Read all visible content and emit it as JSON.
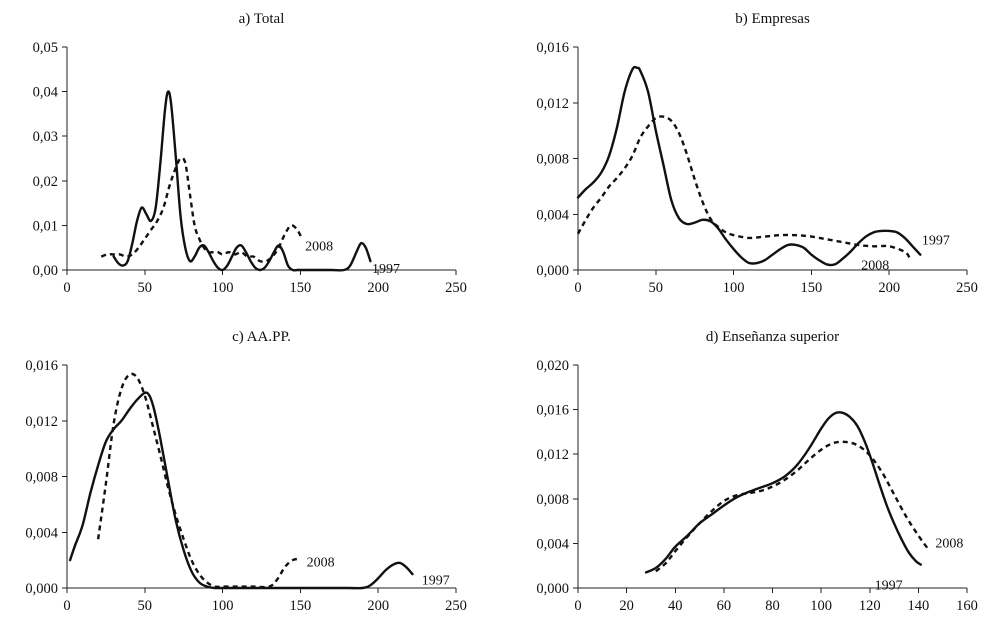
{
  "chart_data": [
    {
      "type": "line",
      "title": "a) Total",
      "xlim": [
        0,
        250
      ],
      "ylim": [
        0,
        0.05
      ],
      "xticks": [
        "0",
        "50",
        "100",
        "150",
        "200",
        "250"
      ],
      "yticks": [
        "0,00",
        "0,01",
        "0,02",
        "0,03",
        "0,04",
        "0,05"
      ],
      "series": [
        {
          "name": "1997",
          "x": [
            30,
            33,
            36,
            39,
            42,
            45,
            48,
            51,
            54,
            57,
            60,
            63,
            65,
            67,
            70,
            73,
            76,
            79,
            82,
            85,
            88,
            91,
            94,
            97,
            100,
            103,
            106,
            109,
            112,
            115,
            118,
            121,
            124,
            127,
            130,
            133,
            136,
            139,
            142,
            145,
            148,
            150,
            160,
            170,
            178,
            182,
            186,
            189,
            192,
            195
          ],
          "y": [
            0.003,
            0.0015,
            0.001,
            0.002,
            0.006,
            0.011,
            0.014,
            0.0125,
            0.011,
            0.014,
            0.024,
            0.036,
            0.04,
            0.037,
            0.025,
            0.012,
            0.005,
            0.002,
            0.003,
            0.005,
            0.0055,
            0.004,
            0.002,
            0.0005,
            0,
            0.001,
            0.003,
            0.005,
            0.0055,
            0.004,
            0.002,
            0.0005,
            0,
            0.0005,
            0.002,
            0.004,
            0.0055,
            0.004,
            0.001,
            0,
            0,
            0,
            0,
            0,
            0,
            0.001,
            0.004,
            0.006,
            0.005,
            0.002
          ]
        },
        {
          "name": "2008",
          "x": [
            22,
            26,
            30,
            34,
            38,
            42,
            46,
            50,
            54,
            58,
            62,
            66,
            70,
            73,
            76,
            79,
            82,
            85,
            88,
            91,
            94,
            97,
            100,
            104,
            108,
            112,
            116,
            120,
            124,
            128,
            132,
            136,
            140,
            144,
            148,
            151
          ],
          "y": [
            0.003,
            0.0035,
            0.0035,
            0.0035,
            0.003,
            0.0035,
            0.005,
            0.007,
            0.009,
            0.011,
            0.014,
            0.019,
            0.023,
            0.025,
            0.024,
            0.017,
            0.01,
            0.007,
            0.005,
            0.004,
            0.004,
            0.004,
            0.0035,
            0.004,
            0.0035,
            0.004,
            0.003,
            0.003,
            0.002,
            0.002,
            0.003,
            0.005,
            0.008,
            0.01,
            0.009,
            0.007
          ]
        }
      ],
      "annotations": [
        {
          "text": "2008",
          "x": 153,
          "y": 0.0055
        },
        {
          "text": "1997",
          "x": 196,
          "y": 0.0005
        }
      ]
    },
    {
      "type": "line",
      "title": "b) Empresas",
      "xlim": [
        0,
        250
      ],
      "ylim": [
        0,
        0.016
      ],
      "xticks": [
        "0",
        "50",
        "100",
        "150",
        "200",
        "250"
      ],
      "yticks": [
        "0,000",
        "0,004",
        "0,008",
        "0,012",
        "0,016"
      ],
      "series": [
        {
          "name": "1997",
          "x": [
            0,
            5,
            10,
            15,
            20,
            25,
            30,
            35,
            38,
            40,
            45,
            50,
            55,
            60,
            65,
            70,
            75,
            80,
            85,
            90,
            95,
            100,
            105,
            110,
            115,
            120,
            125,
            130,
            135,
            140,
            145,
            150,
            155,
            160,
            165,
            170,
            175,
            180,
            185,
            190,
            195,
            200,
            205,
            210,
            215,
            220
          ],
          "y": [
            0.0052,
            0.0058,
            0.0063,
            0.007,
            0.0082,
            0.0102,
            0.0128,
            0.0144,
            0.0145,
            0.0143,
            0.0128,
            0.01,
            0.0075,
            0.005,
            0.0037,
            0.0033,
            0.0034,
            0.0036,
            0.0035,
            0.003,
            0.0022,
            0.0015,
            0.0009,
            0.0005,
            0.0005,
            0.0007,
            0.0011,
            0.0015,
            0.0018,
            0.0018,
            0.0016,
            0.0011,
            0.0007,
            0.0004,
            0.0004,
            0.0008,
            0.0013,
            0.0019,
            0.0024,
            0.0027,
            0.0028,
            0.0028,
            0.0027,
            0.0023,
            0.0017,
            0.0011
          ]
        },
        {
          "name": "2008",
          "x": [
            0,
            5,
            10,
            15,
            20,
            25,
            30,
            35,
            40,
            45,
            50,
            55,
            60,
            65,
            70,
            75,
            80,
            85,
            90,
            95,
            100,
            110,
            120,
            130,
            140,
            150,
            160,
            170,
            180,
            190,
            200,
            210,
            213
          ],
          "y": [
            0.0026,
            0.0036,
            0.0045,
            0.0052,
            0.006,
            0.0066,
            0.0073,
            0.0082,
            0.0095,
            0.0103,
            0.0109,
            0.011,
            0.0107,
            0.0098,
            0.0083,
            0.0065,
            0.0049,
            0.0037,
            0.0031,
            0.0027,
            0.0025,
            0.0023,
            0.0024,
            0.0025,
            0.0025,
            0.0024,
            0.0022,
            0.002,
            0.0018,
            0.0017,
            0.0017,
            0.0013,
            0.0009
          ]
        }
      ],
      "annotations": [
        {
          "text": "1997",
          "x": 221,
          "y": 0.0022
        },
        {
          "text": "2008",
          "x": 182,
          "y": 0.0004
        }
      ]
    },
    {
      "type": "line",
      "title": "c) AA.PP.",
      "xlim": [
        0,
        250
      ],
      "ylim": [
        0,
        0.016
      ],
      "xticks": [
        "0",
        "50",
        "100",
        "150",
        "200",
        "250"
      ],
      "yticks": [
        "0,000",
        "0,004",
        "0,008",
        "0,012",
        "0,016"
      ],
      "series": [
        {
          "name": "1997",
          "x": [
            2,
            5,
            10,
            15,
            20,
            25,
            30,
            35,
            40,
            45,
            50,
            53,
            56,
            60,
            65,
            70,
            75,
            80,
            85,
            90,
            95,
            100,
            110,
            120,
            140,
            160,
            180,
            190,
            195,
            200,
            205,
            210,
            214,
            218,
            222
          ],
          "y": [
            0.002,
            0.003,
            0.0045,
            0.0068,
            0.0088,
            0.0105,
            0.0114,
            0.012,
            0.0128,
            0.0135,
            0.014,
            0.0138,
            0.0128,
            0.0107,
            0.0077,
            0.0048,
            0.0027,
            0.0012,
            0.0004,
            0.0001,
            0,
            0,
            0,
            0,
            0,
            0,
            0,
            0,
            0.0002,
            0.0007,
            0.0013,
            0.0017,
            0.0018,
            0.0015,
            0.001
          ]
        },
        {
          "name": "2008",
          "x": [
            20,
            25,
            30,
            35,
            40,
            45,
            50,
            55,
            60,
            65,
            70,
            75,
            80,
            85,
            90,
            95,
            100,
            110,
            120,
            130,
            135,
            140,
            145,
            150
          ],
          "y": [
            0.0035,
            0.0075,
            0.0118,
            0.0143,
            0.0153,
            0.0151,
            0.0138,
            0.0117,
            0.0095,
            0.0072,
            0.0052,
            0.0035,
            0.002,
            0.001,
            0.0004,
            0.0001,
            0.0001,
            0.0001,
            0.0001,
            0.0001,
            0.0006,
            0.0015,
            0.002,
            0.0021
          ]
        }
      ],
      "annotations": [
        {
          "text": "2008",
          "x": 154,
          "y": 0.0019
        },
        {
          "text": "1997",
          "x": 228,
          "y": 0.0006
        }
      ]
    },
    {
      "type": "line",
      "title": "d) Enseñanza superior",
      "xlim": [
        0,
        160
      ],
      "ylim": [
        0,
        0.02
      ],
      "xticks": [
        "0",
        "20",
        "40",
        "60",
        "80",
        "100",
        "120",
        "140",
        "160"
      ],
      "yticks": [
        "0,000",
        "0,004",
        "0,008",
        "0,012",
        "0,016",
        "0,020"
      ],
      "series": [
        {
          "name": "1997",
          "x": [
            28,
            32,
            36,
            40,
            45,
            50,
            55,
            60,
            65,
            70,
            75,
            80,
            85,
            90,
            95,
            100,
            103,
            106,
            109,
            112,
            115,
            118,
            121,
            124,
            127,
            130,
            133,
            136,
            139,
            141
          ],
          "y": [
            0.0014,
            0.0018,
            0.0026,
            0.0037,
            0.0047,
            0.0058,
            0.0066,
            0.0074,
            0.0081,
            0.0086,
            0.009,
            0.0094,
            0.01,
            0.011,
            0.0125,
            0.0143,
            0.0152,
            0.0157,
            0.0157,
            0.0153,
            0.0145,
            0.0131,
            0.0113,
            0.0093,
            0.0074,
            0.0058,
            0.0044,
            0.0032,
            0.0024,
            0.0021
          ]
        },
        {
          "name": "2008",
          "x": [
            32,
            36,
            40,
            45,
            50,
            55,
            60,
            65,
            70,
            75,
            80,
            85,
            90,
            95,
            100,
            105,
            110,
            115,
            120,
            125,
            130,
            135,
            140,
            144
          ],
          "y": [
            0.0015,
            0.0022,
            0.0033,
            0.0046,
            0.0058,
            0.0069,
            0.0078,
            0.0083,
            0.0085,
            0.0087,
            0.0091,
            0.0097,
            0.0105,
            0.0115,
            0.0124,
            0.013,
            0.0131,
            0.0128,
            0.0119,
            0.0104,
            0.0084,
            0.0064,
            0.0047,
            0.0035
          ]
        }
      ],
      "annotations": [
        {
          "text": "2008",
          "x": 147,
          "y": 0.0041
        },
        {
          "text": "1997",
          "x": 122,
          "y": 0.0003
        }
      ]
    }
  ]
}
